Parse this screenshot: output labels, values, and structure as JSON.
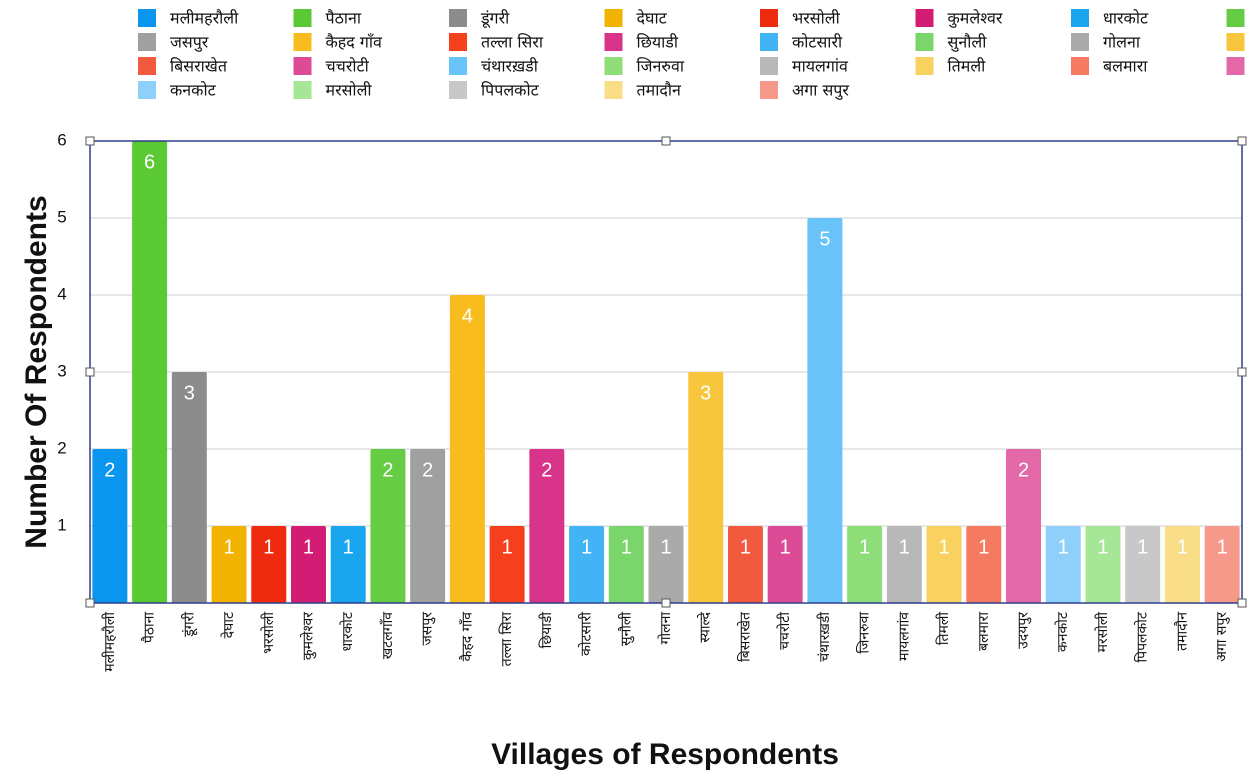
{
  "chart_data": {
    "type": "bar",
    "title": "",
    "xlabel": "Villages of Respondents",
    "ylabel": "Number Of Respondents",
    "ylim": [
      0,
      6
    ],
    "yticks": [
      1,
      2,
      3,
      4,
      5,
      6
    ],
    "grid": true,
    "legend_position": "top",
    "categories": [
      "मलीमहरौली",
      "पैठाना",
      "डूंगरी",
      "देघाट",
      "भरसोली",
      "कुमलेश्वर",
      "धारकोट",
      "खटलगाँव",
      "जसपुर",
      "कैहद गाँव",
      "तल्ला सिरा",
      "छियाडी",
      "कोटसारी",
      "सुनौली",
      "गोलना",
      "स्याल्दे",
      "बिसराखेत",
      "चचरोटी",
      "चंथारख़डी",
      "जिनरुवा",
      "मायलगांव",
      "तिमली",
      "बलमारा",
      "उदयपुर",
      "कनकोट",
      "मरसोली",
      "पिपलकोट",
      "तमादौन",
      "अगा सपुर"
    ],
    "values": [
      2,
      6,
      3,
      1,
      1,
      1,
      1,
      2,
      2,
      4,
      1,
      2,
      1,
      1,
      1,
      3,
      1,
      1,
      5,
      1,
      1,
      1,
      1,
      2,
      1,
      1,
      1,
      1,
      1
    ],
    "colors": [
      "#0A95EE",
      "#5BC933",
      "#8C8C8C",
      "#F2B300",
      "#EE2A0F",
      "#D31C73",
      "#1AA6EE",
      "#66CC44",
      "#A0A0A0",
      "#F8BC1E",
      "#F4401D",
      "#D8348A",
      "#42B4F5",
      "#7AD66A",
      "#AAAAAA",
      "#F7C63C",
      "#F25A40",
      "#DB4B96",
      "#67C3F8",
      "#8EDD78",
      "#B8B8B8",
      "#F8D15E",
      "#F47A62",
      "#E268A8",
      "#8ED0FA",
      "#A6E697",
      "#C8C8C8",
      "#F9DD87",
      "#F6998A"
    ],
    "legend": [
      "मलीमहरौली",
      "पैठाना",
      "डूंगरी",
      "देघाट",
      "भरसोली",
      "कुमलेश्वर",
      "धारकोट",
      "खटलगाँव",
      "जसपुर",
      "कैहद गाँव",
      "तल्ला सिरा",
      "छियाडी",
      "कोटसारी",
      "सुनौली",
      "गोलना",
      "स्याल्दे",
      "बिसराखेत",
      "चचरोटी",
      "चंथारख़डी",
      "जिनरुवा",
      "मायलगांव",
      "तिमली",
      "बलमारा",
      "उदयपुर",
      "कनकोट",
      "मरसोली",
      "पिपलकोट",
      "तमादौन",
      "अगा सपुर"
    ]
  }
}
